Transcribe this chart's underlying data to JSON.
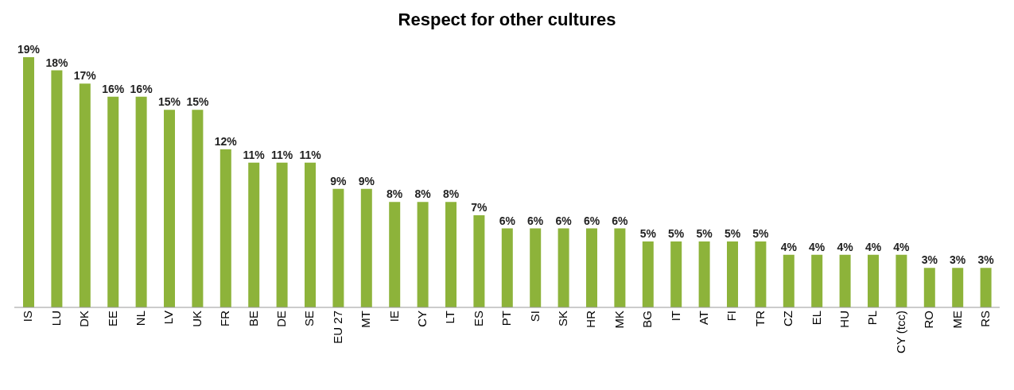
{
  "chart_data": {
    "type": "bar",
    "title": "Respect for other cultures",
    "categories": [
      "IS",
      "LU",
      "DK",
      "EE",
      "NL",
      "LV",
      "UK",
      "FR",
      "BE",
      "DE",
      "SE",
      "EU 27",
      "MT",
      "IE",
      "CY",
      "LT",
      "ES",
      "PT",
      "SI",
      "SK",
      "HR",
      "MK",
      "BG",
      "IT",
      "AT",
      "FI",
      "TR",
      "CZ",
      "EL",
      "HU",
      "PL",
      "CY (tcc)",
      "RO",
      "ME",
      "RS"
    ],
    "values": [
      19,
      18,
      17,
      16,
      16,
      15,
      15,
      12,
      11,
      11,
      11,
      9,
      9,
      8,
      8,
      8,
      7,
      6,
      6,
      6,
      6,
      6,
      5,
      5,
      5,
      5,
      5,
      4,
      4,
      4,
      4,
      4,
      3,
      3,
      3
    ],
    "value_labels": [
      "19%",
      "18%",
      "17%",
      "16%",
      "16%",
      "15%",
      "15%",
      "12%",
      "11%",
      "11%",
      "11%",
      "9%",
      "9%",
      "8%",
      "8%",
      "8%",
      "7%",
      "6%",
      "6%",
      "6%",
      "6%",
      "6%",
      "5%",
      "5%",
      "5%",
      "5%",
      "5%",
      "4%",
      "4%",
      "4%",
      "4%",
      "4%",
      "3%",
      "3%",
      "3%"
    ],
    "color": "#8db33a",
    "grid": false,
    "legend": false
  }
}
